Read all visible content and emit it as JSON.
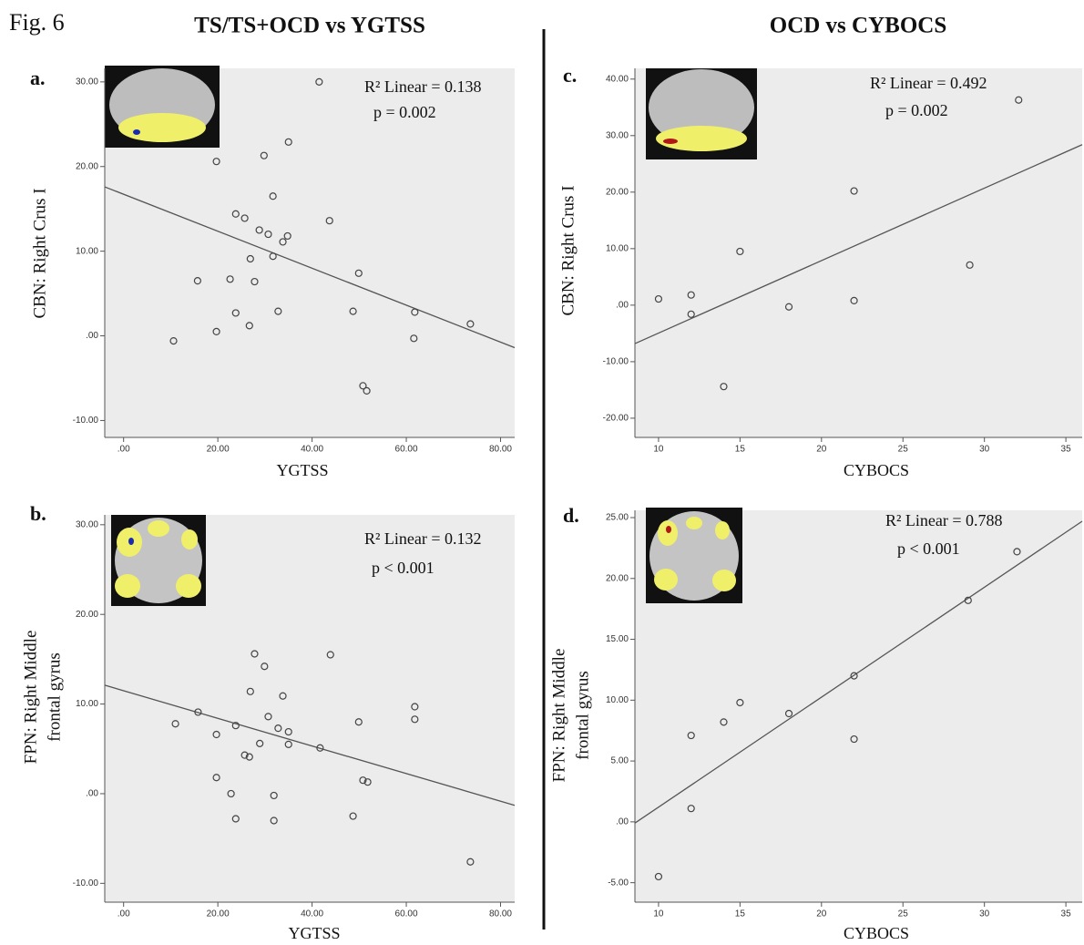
{
  "figure": {
    "label": "Fig. 6",
    "columns": [
      "TS/TS+OCD vs YGTSS",
      "OCD vs CYBOCS"
    ]
  },
  "chart_data": [
    {
      "type": "scatter",
      "panel": "a.",
      "x_label": "YGTSS",
      "y_label": [
        "CBN: Right Crus I"
      ],
      "annotations": [
        "R² Linear = 0.138",
        "p = 0.002"
      ],
      "xlim": [
        -4,
        83
      ],
      "ylim": [
        -12,
        31.6
      ],
      "xticks": [
        {
          "value": 0,
          "label": ".00"
        },
        {
          "value": 20,
          "label": "20.00"
        },
        {
          "value": 40,
          "label": "40.00"
        },
        {
          "value": 60,
          "label": "60.00"
        },
        {
          "value": 80,
          "label": "80.00"
        }
      ],
      "yticks": [
        {
          "value": -10,
          "label": "-10.00"
        },
        {
          "value": 0,
          "label": ".00"
        },
        {
          "value": 10,
          "label": "10.00"
        },
        {
          "value": 20,
          "label": "20.00"
        },
        {
          "value": 30,
          "label": "30.00"
        }
      ],
      "x": [
        41.5,
        35,
        19.7,
        29.8,
        31.7,
        23.8,
        25.7,
        43.7,
        28.8,
        30.7,
        34.8,
        33.8,
        31.7,
        26.9,
        15.7,
        22.6,
        27.8,
        49.9,
        23.8,
        32.8,
        48.7,
        61.8,
        26.7,
        73.6,
        19.7,
        10.6,
        61.6,
        50.8,
        51.6
      ],
      "y": [
        30,
        22.9,
        20.6,
        21.3,
        16.5,
        14.4,
        13.9,
        13.6,
        12.5,
        12,
        11.8,
        11.1,
        9.4,
        9.1,
        6.5,
        6.7,
        6.4,
        7.4,
        2.7,
        2.9,
        2.9,
        2.8,
        1.2,
        1.4,
        0.5,
        -0.6,
        -0.3,
        -5.9,
        -6.5
      ],
      "fit": {
        "x": [
          -4,
          83
        ],
        "y": [
          17.6,
          -1.4
        ]
      }
    },
    {
      "type": "scatter",
      "panel": "b.",
      "x_label": "YGTSS",
      "y_label": [
        "FPN: Right Middle",
        "frontal gyrus"
      ],
      "annotations": [
        "R² Linear = 0.132",
        "p < 0.001"
      ],
      "xlim": [
        -4,
        83
      ],
      "ylim": [
        -12.1,
        31.1
      ],
      "xticks": [
        {
          "value": 0,
          "label": ".00"
        },
        {
          "value": 20,
          "label": "20.00"
        },
        {
          "value": 40,
          "label": "40.00"
        },
        {
          "value": 60,
          "label": "60.00"
        },
        {
          "value": 80,
          "label": "80.00"
        }
      ],
      "yticks": [
        {
          "value": -10,
          "label": "-10.00"
        },
        {
          "value": 0,
          "label": ".00"
        },
        {
          "value": 10,
          "label": "10.00"
        },
        {
          "value": 20,
          "label": "20.00"
        },
        {
          "value": 30,
          "label": "30.00"
        }
      ],
      "x": [
        27.8,
        43.9,
        29.9,
        26.9,
        33.8,
        15.8,
        61.8,
        61.8,
        11,
        49.9,
        30.7,
        23.8,
        19.7,
        32.8,
        35,
        28.9,
        35,
        41.7,
        25.7,
        26.7,
        19.7,
        50.8,
        51.8,
        22.8,
        31.9,
        48.7,
        23.8,
        31.9,
        73.6
      ],
      "y": [
        15.6,
        15.5,
        14.2,
        11.4,
        10.9,
        9.1,
        9.7,
        8.3,
        7.8,
        8.0,
        8.6,
        7.6,
        6.6,
        7.3,
        6.9,
        5.6,
        5.5,
        5.1,
        4.3,
        4.1,
        1.8,
        1.5,
        1.3,
        0,
        -0.2,
        -2.5,
        -2.8,
        -3.0,
        -7.6
      ],
      "fit": {
        "x": [
          -4,
          83
        ],
        "y": [
          12.1,
          -1.3
        ]
      }
    },
    {
      "type": "scatter",
      "panel": "c.",
      "x_label": "CYBOCS",
      "y_label": [
        "CBN: Right Crus I"
      ],
      "annotations": [
        "R² Linear = 0.492",
        "p = 0.002"
      ],
      "xlim": [
        8.55,
        36
      ],
      "ylim": [
        -23.4,
        41.9
      ],
      "xticks": [
        10,
        15,
        20,
        25,
        30,
        35
      ],
      "yticks": [
        {
          "value": -20,
          "label": "-20.00"
        },
        {
          "value": -10,
          "label": "-10.00"
        },
        {
          "value": 0,
          "label": ".00"
        },
        {
          "value": 10,
          "label": "10.00"
        },
        {
          "value": 20,
          "label": "20.00"
        },
        {
          "value": 30,
          "label": "30.00"
        },
        {
          "value": 40,
          "label": "40.00"
        }
      ],
      "x": [
        32.1,
        22,
        15,
        29.1,
        10,
        12,
        12,
        22,
        18,
        14
      ],
      "y": [
        36.3,
        20.2,
        9.5,
        7.1,
        1.1,
        1.8,
        -1.6,
        0.8,
        -0.3,
        -14.4
      ],
      "fit": {
        "x": [
          8.55,
          36
        ],
        "y": [
          -6.8,
          28.4
        ]
      }
    },
    {
      "type": "scatter",
      "panel": "d.",
      "x_label": "CYBOCS",
      "y_label": [
        "FPN: Right Middle",
        "frontal gyrus"
      ],
      "annotations": [
        "R² Linear = 0.788",
        "p < 0.001"
      ],
      "xlim": [
        8.55,
        36
      ],
      "ylim": [
        -6.6,
        25.6
      ],
      "xticks": [
        10,
        15,
        20,
        25,
        30,
        35
      ],
      "yticks": [
        {
          "value": -5,
          "label": "-5.00"
        },
        {
          "value": 0,
          "label": ".00"
        },
        {
          "value": 5,
          "label": "5.00"
        },
        {
          "value": 10,
          "label": "10.00"
        },
        {
          "value": 15,
          "label": "15.00"
        },
        {
          "value": 20,
          "label": "20.00"
        },
        {
          "value": 25,
          "label": "25.00"
        }
      ],
      "x": [
        32,
        29,
        22,
        15,
        18,
        12,
        14,
        22,
        12,
        10
      ],
      "y": [
        22.2,
        18.2,
        12,
        9.8,
        8.9,
        7.1,
        8.2,
        6.8,
        1.1,
        -4.5
      ],
      "fit": {
        "x": [
          8.55,
          36
        ],
        "y": [
          -0.1,
          24.7
        ]
      }
    }
  ]
}
